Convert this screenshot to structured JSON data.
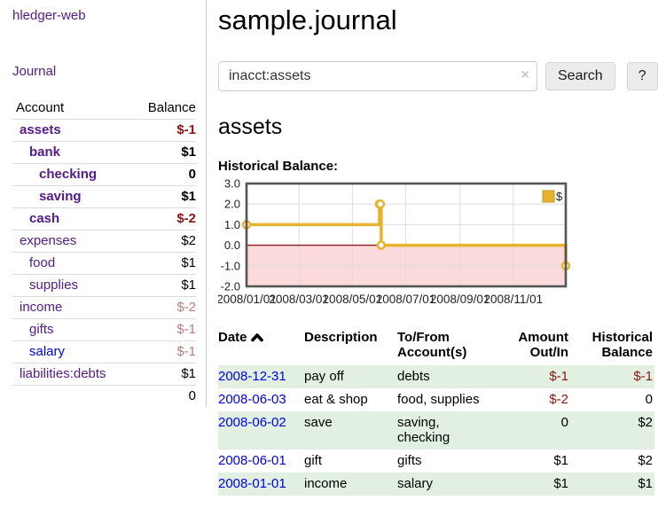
{
  "app": {
    "brand": "hledger-web",
    "nav": {
      "journal": "Journal"
    }
  },
  "sidebar": {
    "accounts_table": {
      "headers": {
        "account": "Account",
        "balance": "Balance"
      },
      "rows": [
        {
          "account": "assets",
          "balance": "$-1",
          "level": 1,
          "bold": true,
          "link": "purple",
          "balance_class": "neg-strong"
        },
        {
          "account": "bank",
          "balance": "$1",
          "level": 2,
          "bold": true,
          "link": "purple",
          "balance_class": ""
        },
        {
          "account": "checking",
          "balance": "0",
          "level": 3,
          "bold": true,
          "link": "purple",
          "balance_class": ""
        },
        {
          "account": "saving",
          "balance": "$1",
          "level": 3,
          "bold": true,
          "link": "purple",
          "balance_class": ""
        },
        {
          "account": "cash",
          "balance": "$-2",
          "level": 2,
          "bold": true,
          "link": "purple",
          "balance_class": "neg-strong"
        },
        {
          "account": "expenses",
          "balance": "$2",
          "level": 1,
          "bold": false,
          "link": "purple",
          "balance_class": ""
        },
        {
          "account": "food",
          "balance": "$1",
          "level": 2,
          "bold": false,
          "link": "purple",
          "balance_class": ""
        },
        {
          "account": "supplies",
          "balance": "$1",
          "level": 2,
          "bold": false,
          "link": "purple",
          "balance_class": ""
        },
        {
          "account": "income",
          "balance": "$-2",
          "level": 1,
          "bold": false,
          "link": "purple",
          "balance_class": "neg-soft"
        },
        {
          "account": "gifts",
          "balance": "$-1",
          "level": 2,
          "bold": false,
          "link": "purple",
          "balance_class": "neg-soft"
        },
        {
          "account": "salary",
          "balance": "$-1",
          "level": 2,
          "bold": false,
          "link": "blue",
          "balance_class": "neg-soft"
        },
        {
          "account": "liabilities:debts",
          "balance": "$1",
          "level": 1,
          "bold": false,
          "link": "purple",
          "balance_class": ""
        }
      ],
      "total": "0"
    }
  },
  "header": {
    "title": "sample.journal"
  },
  "search": {
    "value": "inacct:assets",
    "clear_icon": "×",
    "search_button": "Search",
    "help_button": "?"
  },
  "account_page": {
    "title": "assets",
    "chart_label": "Historical Balance:"
  },
  "chart_data": {
    "type": "line",
    "step": true,
    "title": "Historical Balance",
    "series": [
      {
        "name": "$",
        "color": "#e6b32e",
        "points": [
          [
            "2008-01-01",
            1.0
          ],
          [
            "2008-06-01",
            2.0
          ],
          [
            "2008-06-02",
            2.0
          ],
          [
            "2008-06-03",
            0.0
          ],
          [
            "2008-12-31",
            -1.0
          ]
        ]
      }
    ],
    "x_range": [
      "2008-01-01",
      "2008-12-31"
    ],
    "x_ticks": [
      {
        "date": "2008-01-01",
        "label": "2008/01/01"
      },
      {
        "date": "2008-03-01",
        "label": "2008/03/01"
      },
      {
        "date": "2008-05-01",
        "label": "2008/05/01"
      },
      {
        "date": "2008-07-01",
        "label": "2008/07/01"
      },
      {
        "date": "2008-09-01",
        "label": "2008/09/01"
      },
      {
        "date": "2008-11-01",
        "label": "2008/11/01"
      }
    ],
    "ylim": [
      -2.0,
      3.0
    ],
    "y_ticks": [
      "3.0",
      "2.0",
      "1.0",
      "0.0",
      "-1.0",
      "-2.0"
    ],
    "grid": true,
    "legend": {
      "label": "$",
      "position": "top-right"
    },
    "negative_region_color": "#fadada",
    "zero_line_color": "#8b1a1a",
    "grid_color": "#ddd",
    "border_color": "#555"
  },
  "register": {
    "headers": {
      "date": "Date",
      "sort_indicator": "ascending",
      "description": "Description",
      "accounts": "To/From Account(s)",
      "amount": "Amount Out/In",
      "balance": "Historical Balance"
    },
    "rows": [
      {
        "date": "2008-12-31",
        "description": "pay off",
        "accounts": "debts",
        "amount": "$-1",
        "balance": "$-1",
        "amount_neg": true,
        "balance_neg": true
      },
      {
        "date": "2008-06-03",
        "description": "eat & shop",
        "accounts": "food, supplies",
        "amount": "$-2",
        "balance": "0",
        "amount_neg": true,
        "balance_neg": false
      },
      {
        "date": "2008-06-02",
        "description": "save",
        "accounts": "saving, checking",
        "amount": "0",
        "balance": "$2",
        "amount_neg": false,
        "balance_neg": false
      },
      {
        "date": "2008-06-01",
        "description": "gift",
        "accounts": "gifts",
        "amount": "$1",
        "balance": "$2",
        "amount_neg": false,
        "balance_neg": false
      },
      {
        "date": "2008-01-01",
        "description": "income",
        "accounts": "salary",
        "amount": "$1",
        "balance": "$1",
        "amount_neg": false,
        "balance_neg": false
      }
    ]
  },
  "colors": {
    "purple_link": "#551a8b",
    "blue_link": "#0000ee",
    "negative_strong": "#8e1414",
    "negative_soft": "#bd7b7b",
    "row_green": "#e1f0e1",
    "chart_gold": "#e6b32e"
  }
}
